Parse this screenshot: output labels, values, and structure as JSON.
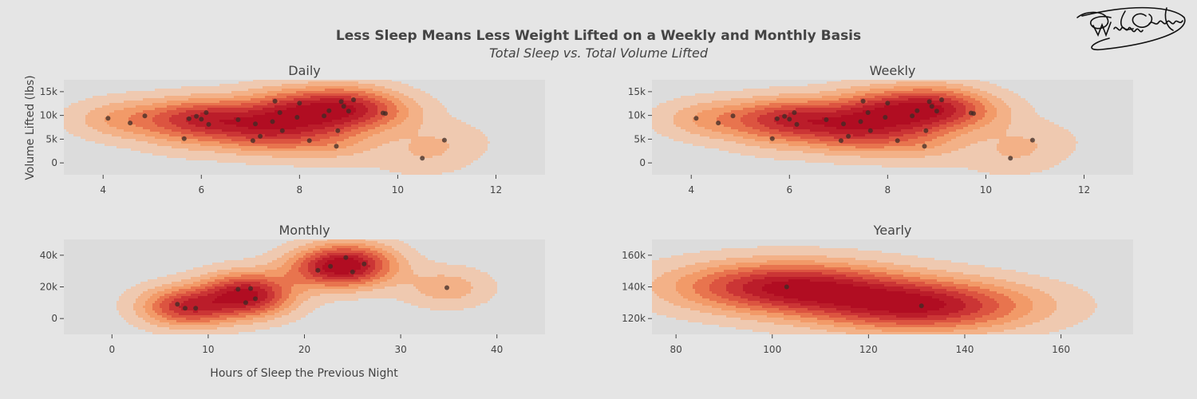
{
  "title": "Less Sleep Means Less Weight Lifted on a Weekly and Monthly Basis",
  "subtitle": "Total Sleep vs. Total Volume Lifted",
  "xlabel": "Hours of Sleep the Previous Night",
  "ylabel": "Volume Lifted (lbs)",
  "signature_text": "William Eberlein",
  "colors": {
    "background": "#e5e5e5",
    "plot_background": "#dcdcdc",
    "contour_levels": [
      "#efc9b0",
      "#f3b187",
      "#f29a68",
      "#e8744e",
      "#dc5440",
      "#cb3535",
      "#bb1d2a",
      "#b10d22"
    ],
    "contour_line": "#6b5a52",
    "point": "#3d2b26"
  },
  "chart_data": [
    {
      "name": "Daily",
      "type": "scatter",
      "overlay": "2d density contour",
      "xlim": [
        3.2,
        13.0
      ],
      "ylim": [
        -2500,
        17500
      ],
      "xticks": [
        4,
        6,
        8,
        10,
        12
      ],
      "xtick_labels": [
        "4",
        "6",
        "8",
        "10",
        "12"
      ],
      "yticks": [
        0,
        5000,
        10000,
        15000
      ],
      "ytick_labels": [
        "0",
        "5k",
        "10k",
        "15k"
      ],
      "x": [
        4.1,
        4.55,
        4.85,
        5.65,
        5.75,
        5.9,
        6.0,
        6.1,
        6.15,
        6.75,
        7.05,
        7.1,
        7.2,
        7.45,
        7.5,
        7.6,
        7.65,
        7.95,
        8.0,
        8.2,
        8.5,
        8.6,
        8.75,
        8.78,
        8.85,
        8.9,
        9.0,
        9.1,
        9.7,
        9.75,
        10.5,
        10.95
      ],
      "y": [
        9400,
        8400,
        9900,
        5100,
        9300,
        9800,
        9200,
        10600,
        8100,
        9100,
        4700,
        8200,
        5600,
        8700,
        13000,
        10600,
        6800,
        9600,
        12600,
        4700,
        9900,
        11000,
        3500,
        6800,
        12900,
        11900,
        10900,
        13300,
        10500,
        10400,
        1000,
        4800
      ]
    },
    {
      "name": "Weekly",
      "type": "scatter",
      "overlay": "2d density contour",
      "xlim": [
        3.2,
        13.0
      ],
      "ylim": [
        -2500,
        17500
      ],
      "xticks": [
        4,
        6,
        8,
        10,
        12
      ],
      "xtick_labels": [
        "4",
        "6",
        "8",
        "10",
        "12"
      ],
      "yticks": [
        0,
        5000,
        10000,
        15000
      ],
      "ytick_labels": [
        "0",
        "5k",
        "10k",
        "15k"
      ],
      "x": [
        4.1,
        4.55,
        4.85,
        5.65,
        5.75,
        5.9,
        6.0,
        6.1,
        6.15,
        6.75,
        7.05,
        7.1,
        7.2,
        7.45,
        7.5,
        7.6,
        7.65,
        7.95,
        8.0,
        8.2,
        8.5,
        8.6,
        8.75,
        8.78,
        8.85,
        8.9,
        9.0,
        9.1,
        9.7,
        9.75,
        10.5,
        10.95
      ],
      "y": [
        9400,
        8400,
        9900,
        5100,
        9300,
        9800,
        9200,
        10600,
        8100,
        9100,
        4700,
        8200,
        5600,
        8700,
        13000,
        10600,
        6800,
        9600,
        12600,
        4700,
        9900,
        11000,
        3500,
        6800,
        12900,
        11900,
        10900,
        13300,
        10500,
        10400,
        1000,
        4800
      ]
    },
    {
      "name": "Monthly",
      "type": "scatter",
      "overlay": "2d density contour",
      "xlim": [
        -5,
        45
      ],
      "ylim": [
        -10000,
        50000
      ],
      "xticks": [
        0,
        10,
        20,
        30,
        40
      ],
      "xtick_labels": [
        "0",
        "10",
        "20",
        "30",
        "40"
      ],
      "yticks": [
        0,
        20000,
        40000
      ],
      "ytick_labels": [
        "0",
        "20k",
        "40k"
      ],
      "x": [
        6.8,
        7.6,
        8.7,
        13.1,
        13.9,
        14.4,
        14.9,
        21.4,
        22.7,
        24.3,
        25.0,
        26.2,
        34.8
      ],
      "y": [
        9000,
        6500,
        6500,
        18500,
        10000,
        19000,
        12500,
        30500,
        33000,
        38500,
        29500,
        34500,
        19500
      ]
    },
    {
      "name": "Yearly",
      "type": "scatter",
      "overlay": "2d density contour",
      "xlim": [
        75,
        175
      ],
      "ylim": [
        110000,
        170000
      ],
      "xticks": [
        80,
        100,
        120,
        140,
        160
      ],
      "xtick_labels": [
        "80",
        "100",
        "120",
        "140",
        "160"
      ],
      "yticks": [
        120000,
        140000,
        160000
      ],
      "ytick_labels": [
        "120k",
        "140k",
        "160k"
      ],
      "x": [
        103,
        131
      ],
      "y": [
        140000,
        128000
      ]
    }
  ]
}
